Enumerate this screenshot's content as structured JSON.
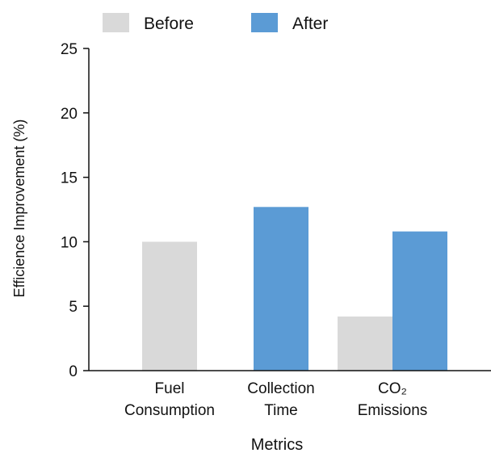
{
  "chart_data": {
    "type": "bar",
    "categories": [
      [
        "Fuel",
        "Consumption"
      ],
      [
        "Collection",
        "Time"
      ],
      [
        "CO₂",
        "Emissions"
      ]
    ],
    "series": [
      {
        "name": "Before",
        "color": "#d9d9d9",
        "values": [
          10.0,
          null,
          4.2
        ]
      },
      {
        "name": "After",
        "color": "#5b9bd5",
        "values": [
          null,
          12.7,
          10.8
        ]
      }
    ],
    "xlabel": "Metrics",
    "ylabel": "Efficience Improvement (%)",
    "ylim": [
      0,
      25
    ],
    "yticks": [
      0,
      5,
      10,
      15,
      20,
      25
    ],
    "grid": false,
    "legend_position": "top"
  }
}
